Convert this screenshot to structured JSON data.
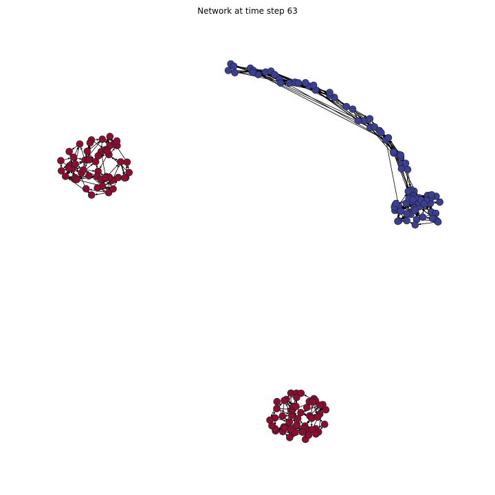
{
  "figure": {
    "title": "Network at time step 63"
  },
  "colors": {
    "blue_community": "#3b3f8f",
    "red_community": "#8b0e2c",
    "edge": "#000000",
    "background": "#ffffff"
  },
  "clusters": [
    {
      "id": "blue-arc",
      "color_key": "blue_community",
      "shape": "arc",
      "node_count": 95
    },
    {
      "id": "red-upper-left",
      "color_key": "red_community",
      "shape": "blob",
      "node_count": 55
    },
    {
      "id": "red-bottom",
      "color_key": "red_community",
      "shape": "blob",
      "node_count": 55
    }
  ]
}
